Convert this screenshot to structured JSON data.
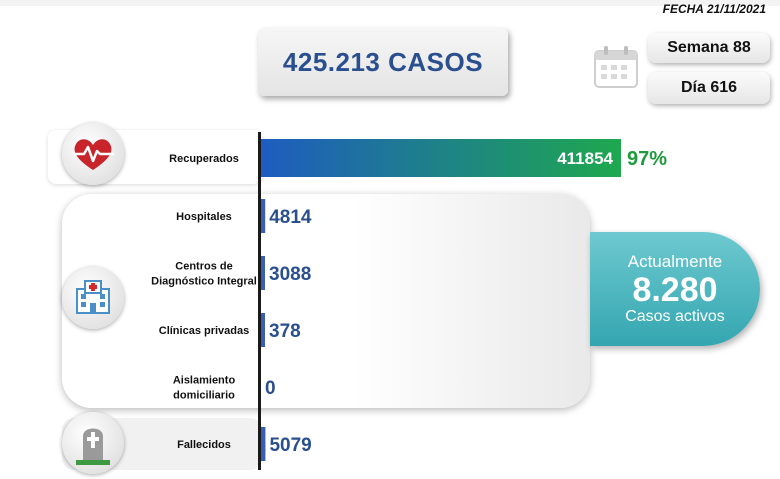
{
  "header": {
    "date": "FECHA 21/11/2021",
    "total_cases": "425.213 CASOS",
    "week": "Semana 88",
    "day": "Día 616"
  },
  "active": {
    "title": "Actualmente",
    "value": "8.280",
    "subtitle": "Casos activos"
  },
  "colors": {
    "bar_start": "#1e5cc0",
    "bar_end": "#1ea84e",
    "bar_secondary": "#3b5fb0",
    "active_bg": "#43b2bb",
    "value_text": "#2a4f8f"
  },
  "chart_data": {
    "type": "bar",
    "orientation": "horizontal",
    "categories": [
      "Recuperados",
      "Hospitales",
      "Centros de Diagnóstico Integral",
      "Clínicas privadas",
      "Aislamiento domiciliario",
      "Fallecidos"
    ],
    "values": [
      411854,
      4814,
      3088,
      378,
      0,
      5079
    ],
    "value_labels": [
      "411854",
      "4814",
      "3088",
      "378",
      "0",
      "5079"
    ],
    "annotations": [
      "97%",
      "",
      "",
      "",
      "",
      ""
    ],
    "label_lines": [
      [
        "Recuperados"
      ],
      [
        "Hospitales"
      ],
      [
        "Centros de",
        "Diagnóstico Integral"
      ],
      [
        "Clínicas privadas"
      ],
      [
        "Aislamiento",
        "domiciliario"
      ],
      [
        "Fallecidos"
      ]
    ],
    "xlim": [
      0,
      411854
    ],
    "grid": false
  }
}
